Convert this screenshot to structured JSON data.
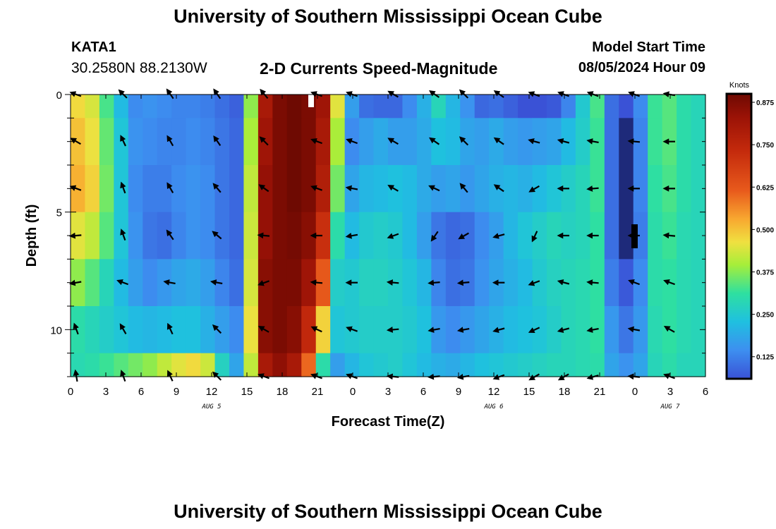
{
  "header": {
    "title": "University of Southern Mississippi Ocean Cube",
    "station": "KATA1",
    "coords": "30.2580N  88.2130W",
    "subtitle": "2-D Currents Speed-Magnitude",
    "model_start_label": "Model Start Time",
    "model_start_value": "08/05/2024 Hour 09"
  },
  "footer": {
    "title": "University of Southern Mississippi Ocean Cube"
  },
  "chart_data": {
    "type": "heatmap",
    "title": "2-D Currents Speed-Magnitude",
    "xlabel": "Forecast Time(Z)",
    "ylabel": "Depth (ft)",
    "x_range_hours": [
      0,
      54
    ],
    "y_range_ft": [
      0,
      12
    ],
    "x_ticks": [
      {
        "h": 0,
        "label": "0"
      },
      {
        "h": 3,
        "label": "3"
      },
      {
        "h": 6,
        "label": "6"
      },
      {
        "h": 9,
        "label": "9"
      },
      {
        "h": 12,
        "label": "12"
      },
      {
        "h": 15,
        "label": "15"
      },
      {
        "h": 18,
        "label": "18"
      },
      {
        "h": 21,
        "label": "21"
      },
      {
        "h": 24,
        "label": "0"
      },
      {
        "h": 27,
        "label": "3"
      },
      {
        "h": 30,
        "label": "6"
      },
      {
        "h": 33,
        "label": "9"
      },
      {
        "h": 36,
        "label": "12"
      },
      {
        "h": 39,
        "label": "15"
      },
      {
        "h": 42,
        "label": "18"
      },
      {
        "h": 45,
        "label": "21"
      },
      {
        "h": 48,
        "label": "0"
      },
      {
        "h": 51,
        "label": "3"
      },
      {
        "h": 54,
        "label": "6"
      }
    ],
    "date_labels": [
      {
        "h": 12,
        "label": "AUG 5"
      },
      {
        "h": 36,
        "label": "AUG 6"
      },
      {
        "h": 51,
        "label": "AUG 7"
      }
    ],
    "y_ticks": [
      {
        "d": 0,
        "label": "0"
      },
      {
        "d": 5,
        "label": "5"
      },
      {
        "d": 10,
        "label": "10"
      }
    ],
    "depth_rows_ft": [
      0,
      2,
      4,
      6,
      8,
      10,
      12
    ],
    "speed_knots": [
      [
        0.47,
        0.44,
        0.33,
        0.22,
        0.14,
        0.15,
        0.14,
        0.13,
        0.13,
        0.12,
        0.1,
        0.08,
        0.38,
        0.8,
        0.88,
        0.9,
        0.88,
        0.82,
        0.45,
        0.17,
        0.1,
        0.09,
        0.09,
        0.14,
        0.2,
        0.28,
        0.21,
        0.15,
        0.09,
        0.1,
        0.08,
        0.06,
        0.05,
        0.07,
        0.13,
        0.25,
        0.33,
        0.1,
        0.05,
        0.14,
        0.32,
        0.34,
        0.3,
        0.28
      ],
      [
        0.5,
        0.46,
        0.35,
        0.24,
        0.15,
        0.14,
        0.13,
        0.13,
        0.14,
        0.13,
        0.11,
        0.09,
        0.4,
        0.82,
        0.88,
        0.9,
        0.88,
        0.8,
        0.4,
        0.14,
        0.17,
        0.19,
        0.17,
        0.17,
        0.19,
        0.23,
        0.22,
        0.18,
        0.17,
        0.19,
        0.17,
        0.16,
        0.17,
        0.18,
        0.22,
        0.26,
        0.32,
        0.1,
        0.03,
        0.13,
        0.32,
        0.34,
        0.3,
        0.28
      ],
      [
        0.52,
        0.48,
        0.36,
        0.24,
        0.14,
        0.12,
        0.12,
        0.14,
        0.15,
        0.14,
        0.11,
        0.09,
        0.42,
        0.84,
        0.88,
        0.9,
        0.88,
        0.78,
        0.36,
        0.18,
        0.21,
        0.22,
        0.23,
        0.22,
        0.19,
        0.17,
        0.18,
        0.16,
        0.18,
        0.2,
        0.21,
        0.2,
        0.22,
        0.24,
        0.26,
        0.28,
        0.32,
        0.1,
        0.03,
        0.13,
        0.31,
        0.33,
        0.3,
        0.28
      ],
      [
        0.45,
        0.42,
        0.34,
        0.24,
        0.15,
        0.11,
        0.1,
        0.13,
        0.15,
        0.14,
        0.11,
        0.09,
        0.43,
        0.84,
        0.88,
        0.89,
        0.86,
        0.72,
        0.3,
        0.22,
        0.25,
        0.26,
        0.25,
        0.22,
        0.17,
        0.11,
        0.09,
        0.1,
        0.14,
        0.17,
        0.21,
        0.24,
        0.26,
        0.28,
        0.27,
        0.28,
        0.31,
        0.1,
        0.02,
        0.12,
        0.3,
        0.32,
        0.29,
        0.28
      ],
      [
        0.38,
        0.34,
        0.28,
        0.22,
        0.17,
        0.14,
        0.16,
        0.18,
        0.19,
        0.17,
        0.13,
        0.1,
        0.44,
        0.86,
        0.88,
        0.88,
        0.82,
        0.62,
        0.26,
        0.25,
        0.27,
        0.27,
        0.26,
        0.24,
        0.21,
        0.13,
        0.1,
        0.11,
        0.15,
        0.18,
        0.2,
        0.22,
        0.25,
        0.27,
        0.28,
        0.29,
        0.31,
        0.12,
        0.07,
        0.14,
        0.3,
        0.31,
        0.29,
        0.28
      ],
      [
        0.3,
        0.28,
        0.26,
        0.24,
        0.22,
        0.21,
        0.22,
        0.23,
        0.23,
        0.2,
        0.17,
        0.14,
        0.46,
        0.86,
        0.88,
        0.86,
        0.74,
        0.48,
        0.24,
        0.25,
        0.26,
        0.26,
        0.26,
        0.25,
        0.23,
        0.16,
        0.14,
        0.16,
        0.18,
        0.2,
        0.22,
        0.23,
        0.24,
        0.26,
        0.28,
        0.29,
        0.31,
        0.16,
        0.11,
        0.16,
        0.29,
        0.31,
        0.29,
        0.28
      ],
      [
        0.29,
        0.3,
        0.32,
        0.34,
        0.36,
        0.38,
        0.42,
        0.45,
        0.47,
        0.43,
        0.27,
        0.18,
        0.42,
        0.8,
        0.85,
        0.8,
        0.6,
        0.3,
        0.17,
        0.21,
        0.24,
        0.25,
        0.26,
        0.24,
        0.22,
        0.2,
        0.19,
        0.21,
        0.23,
        0.24,
        0.25,
        0.26,
        0.27,
        0.28,
        0.28,
        0.29,
        0.3,
        0.18,
        0.15,
        0.18,
        0.28,
        0.3,
        0.28,
        0.28
      ]
    ],
    "direction_hours": [
      0.5,
      4.5,
      8.5,
      12.5,
      16.5,
      21,
      24,
      27.5,
      31,
      33.5,
      36.5,
      39.5,
      42,
      44.5,
      48,
      51
    ],
    "arrow_depths_ft": [
      0,
      2,
      4,
      6,
      8,
      10,
      12
    ],
    "direction_deg": [
      [
        200,
        225,
        235,
        235,
        230,
        200,
        200,
        210,
        215,
        225,
        215,
        200,
        200,
        200,
        200,
        190
      ],
      [
        210,
        245,
        240,
        235,
        225,
        200,
        200,
        210,
        215,
        225,
        215,
        195,
        195,
        190,
        185,
        180
      ],
      [
        200,
        250,
        240,
        230,
        215,
        200,
        190,
        210,
        205,
        230,
        215,
        150,
        180,
        175,
        180,
        180
      ],
      [
        175,
        250,
        235,
        220,
        185,
        180,
        170,
        160,
        125,
        150,
        165,
        115,
        180,
        180,
        180,
        185
      ],
      [
        170,
        200,
        190,
        190,
        160,
        185,
        180,
        185,
        175,
        175,
        180,
        160,
        195,
        185,
        200,
        200
      ],
      [
        250,
        240,
        245,
        225,
        210,
        205,
        200,
        175,
        170,
        170,
        165,
        155,
        165,
        170,
        190,
        210
      ],
      [
        260,
        250,
        245,
        225,
        200,
        200,
        200,
        185,
        175,
        170,
        160,
        150,
        150,
        165,
        185,
        200
      ]
    ],
    "colorbar": {
      "unit": "Knots",
      "min": 0.06,
      "max": 0.9,
      "ticks": [
        0.125,
        0.25,
        0.375,
        0.5,
        0.625,
        0.75,
        0.875
      ],
      "tick_labels": [
        "0.125",
        "0.250",
        "0.375",
        "0.500",
        "0.625",
        "0.750",
        "0.875"
      ]
    }
  }
}
